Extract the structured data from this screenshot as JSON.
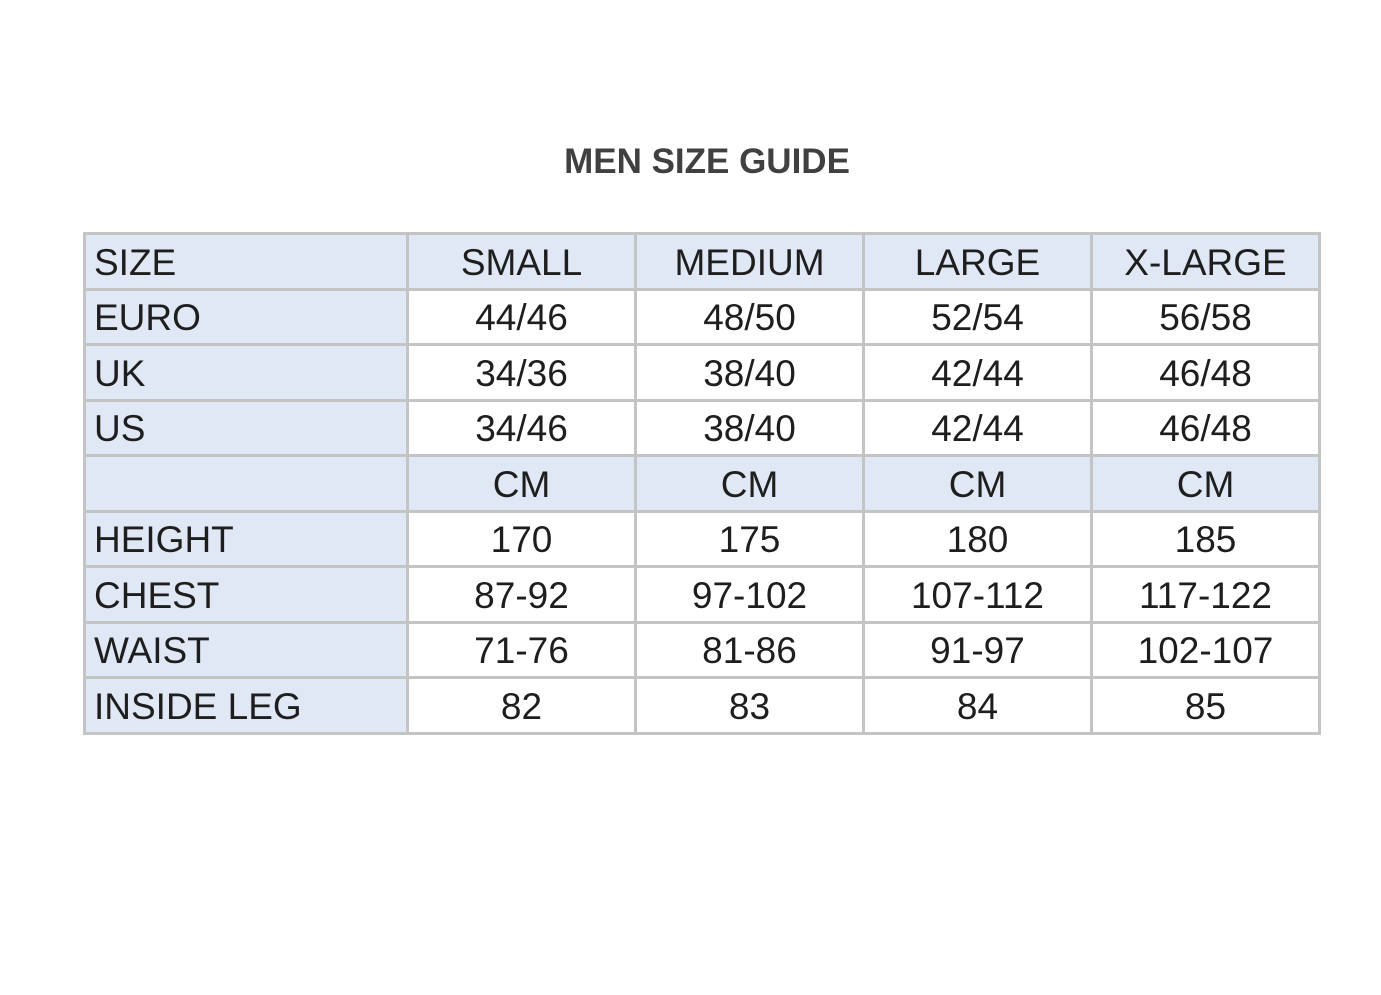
{
  "title": "MEN SIZE GUIDE",
  "table": {
    "header": {
      "label": "SIZE",
      "cells": [
        "SMALL",
        "MEDIUM",
        "LARGE",
        "X-LARGE"
      ]
    },
    "rows": [
      {
        "label": "EURO",
        "cells": [
          "44/46",
          "48/50",
          "52/54",
          "56/58"
        ]
      },
      {
        "label": "UK",
        "cells": [
          "34/36",
          "38/40",
          "42/44",
          "46/48"
        ]
      },
      {
        "label": "US",
        "cells": [
          "34/46",
          "38/40",
          "42/44",
          "46/48"
        ]
      },
      {
        "label": "",
        "cells": [
          "CM",
          "CM",
          "CM",
          "CM"
        ]
      },
      {
        "label": "HEIGHT",
        "cells": [
          "170",
          "175",
          "180",
          "185"
        ]
      },
      {
        "label": "CHEST",
        "cells": [
          "87-92",
          "97-102",
          "107-112",
          "117-122"
        ]
      },
      {
        "label": "WAIST",
        "cells": [
          "71-76",
          "81-86",
          "91-97",
          "102-107"
        ]
      },
      {
        "label": "INSIDE LEG",
        "cells": [
          "82",
          "83",
          "84",
          "85"
        ]
      }
    ]
  },
  "colors": {
    "header_fill": "#dfe8f4",
    "border": "#c4c4c4",
    "text": "#1e1e1e"
  }
}
